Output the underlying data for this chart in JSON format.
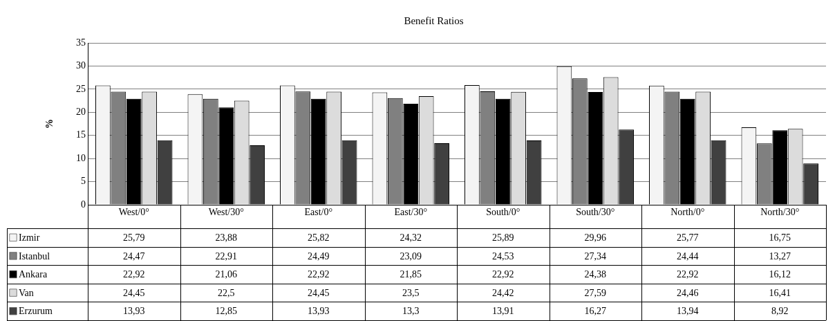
{
  "chart_data": {
    "type": "bar",
    "title": "Benefit Ratios",
    "ylabel": "%",
    "categories": [
      "West/0°",
      "West/30°",
      "East/0°",
      "East/30°",
      "South/0°",
      "South/30°",
      "North/0°",
      "North/30°"
    ],
    "series": [
      {
        "name": "Izmir",
        "color": "#f4f4f4",
        "values": [
          25.79,
          23.88,
          25.82,
          24.32,
          25.89,
          29.96,
          25.77,
          16.75
        ],
        "value_labels": [
          "25,79",
          "23,88",
          "25,82",
          "24,32",
          "25,89",
          "29,96",
          "25,77",
          "16,75"
        ]
      },
      {
        "name": "Istanbul",
        "color": "#808080",
        "values": [
          24.47,
          22.91,
          24.49,
          23.09,
          24.53,
          27.34,
          24.44,
          13.27
        ],
        "value_labels": [
          "24,47",
          "22,91",
          "24,49",
          "23,09",
          "24,53",
          "27,34",
          "24,44",
          "13,27"
        ]
      },
      {
        "name": "Ankara",
        "color": "#000000",
        "values": [
          22.92,
          21.06,
          22.92,
          21.85,
          22.92,
          24.38,
          22.92,
          16.12
        ],
        "value_labels": [
          "22,92",
          "21,06",
          "22,92",
          "21,85",
          "22,92",
          "24,38",
          "22,92",
          "16,12"
        ]
      },
      {
        "name": "Van",
        "color": "#dcdcdc",
        "values": [
          24.45,
          22.5,
          24.45,
          23.5,
          24.42,
          27.59,
          24.46,
          16.41
        ],
        "value_labels": [
          "24,45",
          "22,5",
          "24,45",
          "23,5",
          "24,42",
          "27,59",
          "24,46",
          "16,41"
        ]
      },
      {
        "name": "Erzurum",
        "color": "#404040",
        "values": [
          13.93,
          12.85,
          13.93,
          13.3,
          13.91,
          16.27,
          13.94,
          8.92
        ],
        "value_labels": [
          "13,93",
          "12,85",
          "13,93",
          "13,3",
          "13,91",
          "16,27",
          "13,94",
          "8,92"
        ]
      }
    ],
    "ylim": [
      0,
      35
    ],
    "yticks": [
      0,
      5,
      10,
      15,
      20,
      25,
      30,
      35
    ],
    "grid": "y",
    "legend": "bottom left"
  }
}
